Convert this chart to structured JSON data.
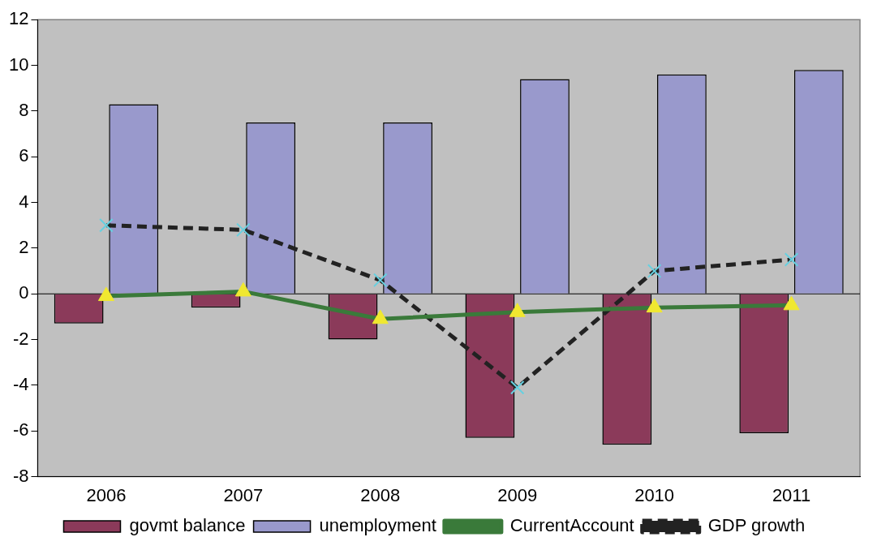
{
  "chart_data": {
    "type": "bar",
    "categories": [
      "2006",
      "2007",
      "2008",
      "2009",
      "2010",
      "2011"
    ],
    "series": [
      {
        "name": "govmt balance",
        "color": "#8b3a5a",
        "values": [
          -1.3,
          -0.6,
          -2.0,
          -6.3,
          -6.6,
          -6.1
        ]
      },
      {
        "name": "unemployment",
        "color": "#9999cc",
        "values": [
          8.3,
          7.5,
          7.5,
          9.4,
          9.6,
          9.8
        ]
      },
      {
        "name": "CurrentAccount",
        "type": "line",
        "color": "#3a7a3a",
        "marker": "triangle",
        "line_style": "solid",
        "values": [
          -0.1,
          0.1,
          -1.1,
          -0.8,
          -0.6,
          -0.5
        ]
      },
      {
        "name": "GDP growth",
        "type": "line",
        "color": "#222222",
        "marker": "cross",
        "line_style": "dashed",
        "values": [
          3.0,
          2.8,
          0.6,
          -4.1,
          1.0,
          1.5
        ]
      }
    ],
    "ylim": [
      -8,
      12
    ],
    "yticks": [
      -8,
      -6,
      -4,
      -2,
      0,
      2,
      4,
      6,
      8,
      10,
      12
    ],
    "legend": "bottom"
  }
}
